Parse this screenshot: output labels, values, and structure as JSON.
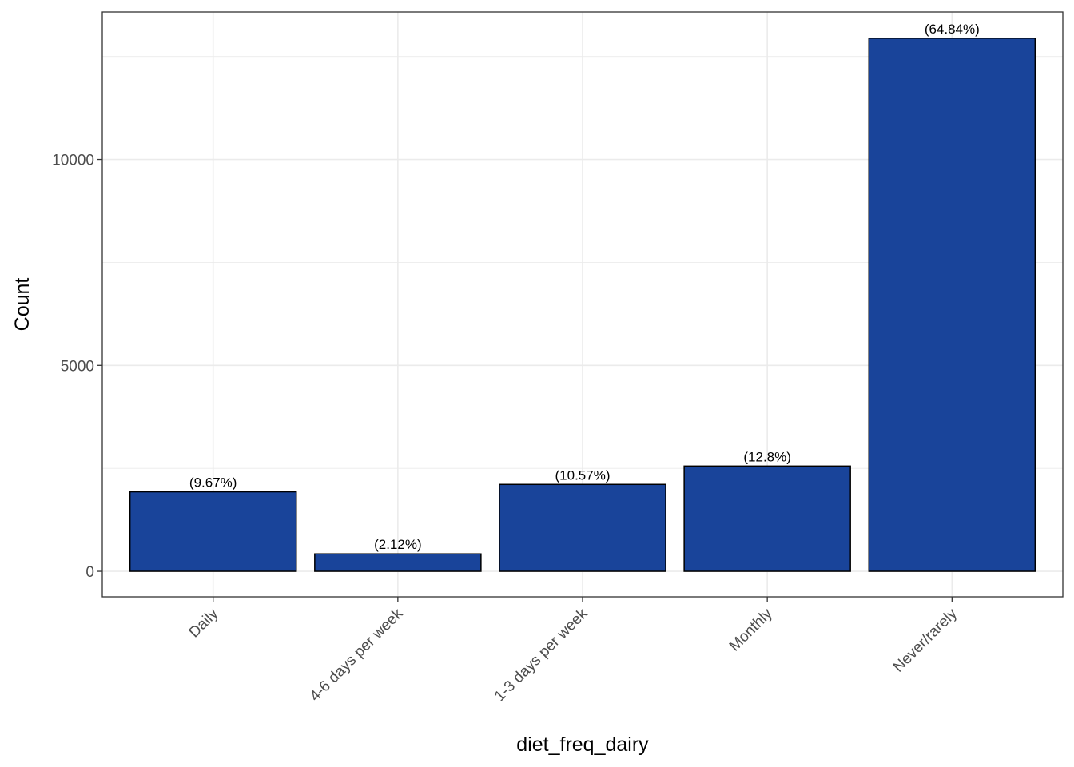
{
  "chart_data": {
    "type": "bar",
    "title": "",
    "xlabel": "diet_freq_dairy",
    "ylabel": "Count",
    "categories": [
      "Daily",
      "4-6 days per week",
      "1-3 days per week",
      "Monthly",
      "Never/rarely"
    ],
    "values": [
      1930,
      423,
      2110,
      2555,
      12943
    ],
    "data_labels": [
      "(9.67%)",
      "(2.12%)",
      "(10.57%)",
      "(12.8%)",
      "(64.84%)"
    ],
    "ylim": [
      -620,
      13580
    ],
    "yticks": [
      0,
      5000,
      10000
    ],
    "ytick_labels": [
      "0",
      "5000",
      "10000"
    ],
    "grid": true,
    "legend": "none",
    "colors": {
      "bar_fill": "#19449A",
      "bar_stroke": "#000000",
      "grid": "#EBEBEB",
      "panel_border": "#333333"
    }
  }
}
